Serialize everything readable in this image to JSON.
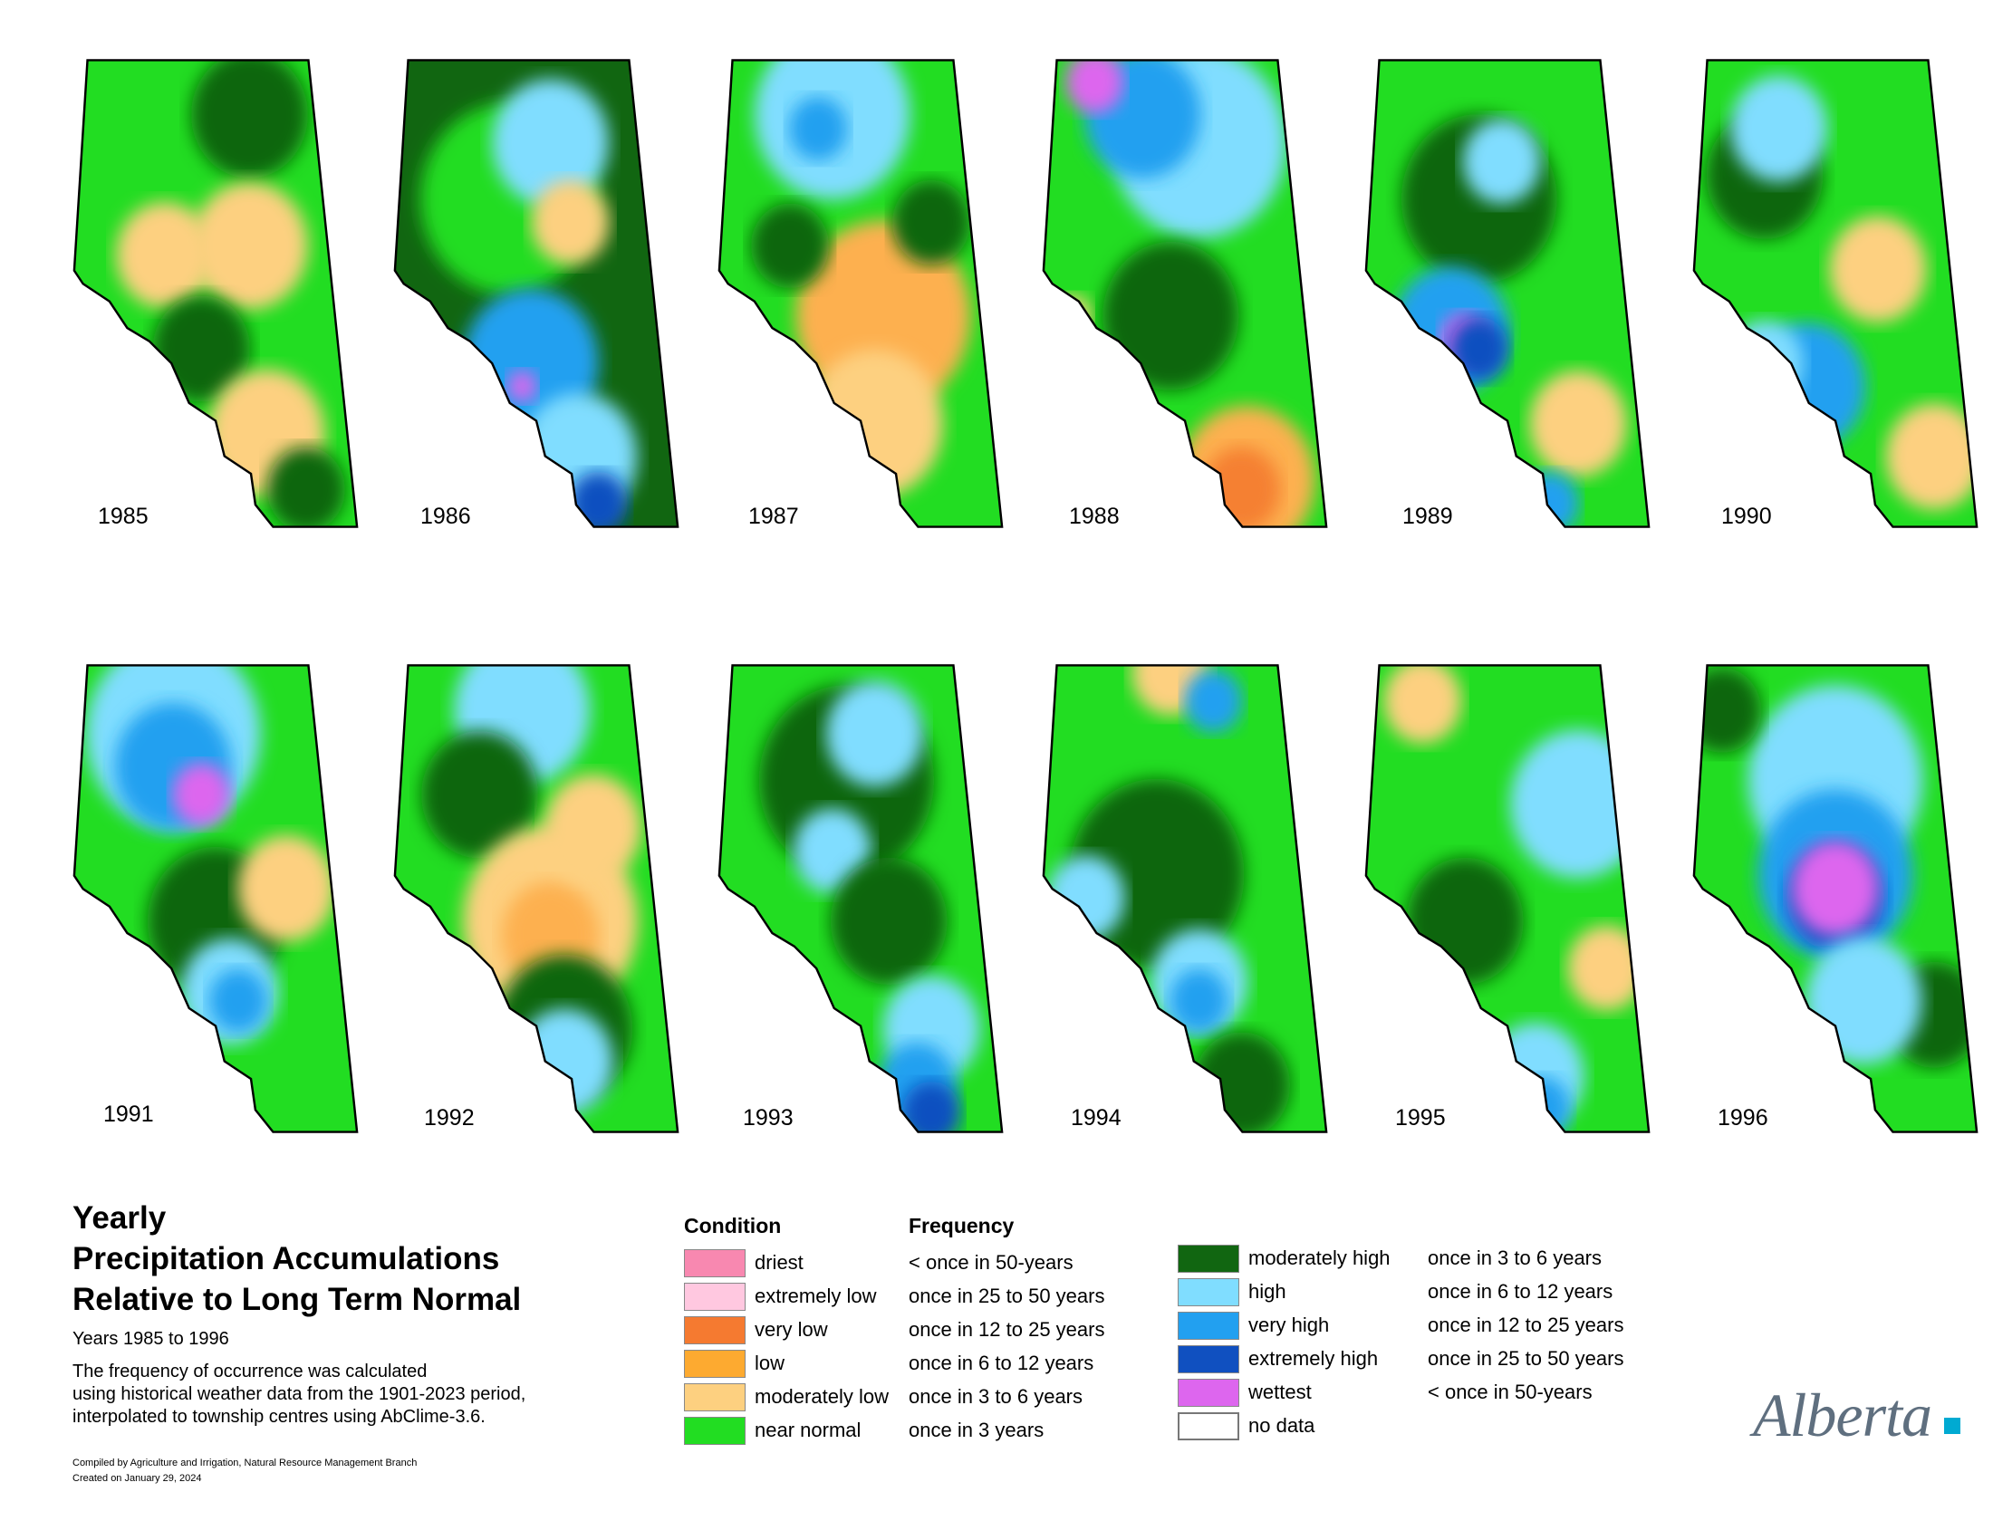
{
  "maps": [
    {
      "year": "1985",
      "base": "#22dd22",
      "blobs": [
        [
          "#116611",
          0.62,
          0.12,
          0.6
        ],
        [
          "#fdd080",
          0.32,
          0.42,
          0.5
        ],
        [
          "#fdd080",
          0.62,
          0.4,
          0.6
        ],
        [
          "#116611",
          0.45,
          0.62,
          0.5
        ],
        [
          "#fdd080",
          0.68,
          0.8,
          0.6
        ],
        [
          "#116611",
          0.82,
          0.92,
          0.4
        ]
      ]
    },
    {
      "year": "1986",
      "base": "#116611",
      "blobs": [
        [
          "#22dd22",
          0.4,
          0.3,
          0.9
        ],
        [
          "#80ddff",
          0.55,
          0.18,
          0.6
        ],
        [
          "#fdd080",
          0.62,
          0.35,
          0.4
        ],
        [
          "#22a0f0",
          0.48,
          0.65,
          0.7
        ],
        [
          "#80ddff",
          0.65,
          0.85,
          0.6
        ],
        [
          "#1050c0",
          0.72,
          0.95,
          0.3
        ],
        [
          "#dd66ee",
          0.45,
          0.7,
          0.15
        ]
      ]
    },
    {
      "year": "1987",
      "base": "#22dd22",
      "blobs": [
        [
          "#80ddff",
          0.4,
          0.12,
          0.8
        ],
        [
          "#22a0f0",
          0.35,
          0.15,
          0.3
        ],
        [
          "#fdb050",
          0.58,
          0.55,
          0.9
        ],
        [
          "#fdd080",
          0.55,
          0.78,
          0.7
        ],
        [
          "#116611",
          0.25,
          0.4,
          0.4
        ],
        [
          "#116611",
          0.75,
          0.35,
          0.4
        ]
      ]
    },
    {
      "year": "1988",
      "base": "#22dd22",
      "blobs": [
        [
          "#80ddff",
          0.55,
          0.18,
          0.9
        ],
        [
          "#22a0f0",
          0.35,
          0.12,
          0.6
        ],
        [
          "#dd66ee",
          0.18,
          0.05,
          0.3
        ],
        [
          "#116611",
          0.45,
          0.55,
          0.7
        ],
        [
          "#fdb050",
          0.72,
          0.9,
          0.7
        ],
        [
          "#f58030",
          0.7,
          0.92,
          0.4
        ],
        [
          "#fdd080",
          0.1,
          0.55,
          0.2
        ]
      ]
    },
    {
      "year": "1989",
      "base": "#22dd22",
      "blobs": [
        [
          "#116611",
          0.4,
          0.3,
          0.8
        ],
        [
          "#80ddff",
          0.48,
          0.22,
          0.4
        ],
        [
          "#22a0f0",
          0.3,
          0.58,
          0.6
        ],
        [
          "#dd66ee",
          0.35,
          0.6,
          0.25
        ],
        [
          "#1050c0",
          0.4,
          0.62,
          0.3
        ],
        [
          "#fdd080",
          0.75,
          0.78,
          0.5
        ],
        [
          "#22a0f0",
          0.65,
          0.95,
          0.3
        ]
      ]
    },
    {
      "year": "1990",
      "base": "#22dd22",
      "blobs": [
        [
          "#116611",
          0.25,
          0.25,
          0.6
        ],
        [
          "#80ddff",
          0.3,
          0.15,
          0.5
        ],
        [
          "#fdd080",
          0.65,
          0.45,
          0.5
        ],
        [
          "#22a0f0",
          0.4,
          0.7,
          0.6
        ],
        [
          "#fdd080",
          0.85,
          0.85,
          0.5
        ],
        [
          "#80ddff",
          0.25,
          0.65,
          0.4
        ]
      ]
    },
    {
      "year": "1991",
      "base": "#22dd22",
      "blobs": [
        [
          "#80ddff",
          0.35,
          0.15,
          0.9
        ],
        [
          "#22a0f0",
          0.35,
          0.22,
          0.6
        ],
        [
          "#dd66ee",
          0.45,
          0.28,
          0.3
        ],
        [
          "#116611",
          0.5,
          0.55,
          0.7
        ],
        [
          "#fdd080",
          0.75,
          0.48,
          0.5
        ],
        [
          "#80ddff",
          0.55,
          0.7,
          0.5
        ],
        [
          "#22a0f0",
          0.58,
          0.72,
          0.3
        ]
      ]
    },
    {
      "year": "1992",
      "base": "#22dd22",
      "blobs": [
        [
          "#80ddff",
          0.45,
          0.1,
          0.7
        ],
        [
          "#116611",
          0.3,
          0.28,
          0.6
        ],
        [
          "#fdd080",
          0.55,
          0.55,
          0.9
        ],
        [
          "#fdb050",
          0.55,
          0.58,
          0.5
        ],
        [
          "#116611",
          0.6,
          0.78,
          0.7
        ],
        [
          "#80ddff",
          0.6,
          0.85,
          0.5
        ],
        [
          "#fdd080",
          0.7,
          0.35,
          0.5
        ]
      ]
    },
    {
      "year": "1993",
      "base": "#22dd22",
      "blobs": [
        [
          "#116611",
          0.45,
          0.25,
          0.9
        ],
        [
          "#80ddff",
          0.55,
          0.15,
          0.5
        ],
        [
          "#80ddff",
          0.4,
          0.4,
          0.4
        ],
        [
          "#116611",
          0.6,
          0.55,
          0.6
        ],
        [
          "#80ddff",
          0.75,
          0.78,
          0.5
        ],
        [
          "#22a0f0",
          0.7,
          0.9,
          0.4
        ],
        [
          "#1050c0",
          0.75,
          0.96,
          0.3
        ],
        [
          "#fdd080",
          0.05,
          0.62,
          0.2
        ]
      ]
    },
    {
      "year": "1994",
      "base": "#22dd22",
      "blobs": [
        [
          "#116611",
          0.4,
          0.45,
          0.9
        ],
        [
          "#fdd080",
          0.45,
          0.02,
          0.4
        ],
        [
          "#22a0f0",
          0.6,
          0.08,
          0.3
        ],
        [
          "#80ddff",
          0.15,
          0.5,
          0.4
        ],
        [
          "#80ddff",
          0.55,
          0.68,
          0.5
        ],
        [
          "#22a0f0",
          0.55,
          0.72,
          0.3
        ],
        [
          "#116611",
          0.7,
          0.9,
          0.5
        ]
      ]
    },
    {
      "year": "1995",
      "base": "#22dd22",
      "blobs": [
        [
          "#fdd080",
          0.2,
          0.08,
          0.4
        ],
        [
          "#80ddff",
          0.75,
          0.3,
          0.7
        ],
        [
          "#116611",
          0.35,
          0.55,
          0.6
        ],
        [
          "#fdd080",
          0.85,
          0.65,
          0.4
        ],
        [
          "#80ddff",
          0.6,
          0.88,
          0.5
        ],
        [
          "#22a0f0",
          0.62,
          0.95,
          0.3
        ]
      ]
    },
    {
      "year": "1996",
      "base": "#22dd22",
      "blobs": [
        [
          "#80ddff",
          0.5,
          0.25,
          0.9
        ],
        [
          "#22a0f0",
          0.5,
          0.45,
          0.8
        ],
        [
          "#1050c0",
          0.5,
          0.5,
          0.5
        ],
        [
          "#dd66ee",
          0.5,
          0.48,
          0.45
        ],
        [
          "#116611",
          0.85,
          0.75,
          0.5
        ],
        [
          "#80ddff",
          0.6,
          0.72,
          0.6
        ],
        [
          "#116611",
          0.1,
          0.1,
          0.4
        ]
      ]
    }
  ],
  "title": {
    "line1": "Yearly",
    "line2": "Precipitation Accumulations",
    "line3": "Relative to Long Term Normal"
  },
  "subtitle": "Years 1985 to 1996",
  "note": {
    "line1": "The frequency of occurrence was calculated",
    "line2": "using historical weather data from the 1901-2023 period,",
    "line3": "interpolated to township centres using AbClime-3.6."
  },
  "credit": {
    "line1": "Compiled by Agriculture and Irrigation, Natural Resource Management Branch",
    "line2": "Created on January 29, 2024"
  },
  "legend": {
    "condition_header": "Condition",
    "frequency_header": "Frequency",
    "dry": [
      {
        "color": "#f888b0",
        "condition": "driest",
        "frequency": "< once in 50-years"
      },
      {
        "color": "#ffc8e0",
        "condition": "extremely low",
        "frequency": "once in 25 to 50 years"
      },
      {
        "color": "#f57a30",
        "condition": "very low",
        "frequency": "once in 12 to 25 years"
      },
      {
        "color": "#fdaa30",
        "condition": "low",
        "frequency": "once in 6 to 12 years"
      },
      {
        "color": "#fdd080",
        "condition": "moderately low",
        "frequency": "once in 3 to 6 years"
      },
      {
        "color": "#22dd22",
        "condition": "near normal",
        "frequency": "once in 3 years"
      }
    ],
    "wet": [
      {
        "color": "#116611",
        "condition": "moderately high",
        "frequency": "once in 3 to 6 years"
      },
      {
        "color": "#80ddff",
        "condition": "high",
        "frequency": "once in 6 to 12 years"
      },
      {
        "color": "#22a0f0",
        "condition": "very high",
        "frequency": "once in 12 to 25 years"
      },
      {
        "color": "#1050c0",
        "condition": "extremely high",
        "frequency": "once in 25 to 50 years"
      },
      {
        "color": "#dd66ee",
        "condition": "wettest",
        "frequency": "< once in 50-years"
      },
      {
        "color": "#ffffff",
        "condition": "no data",
        "frequency": ""
      }
    ]
  },
  "logo": "Alberta"
}
